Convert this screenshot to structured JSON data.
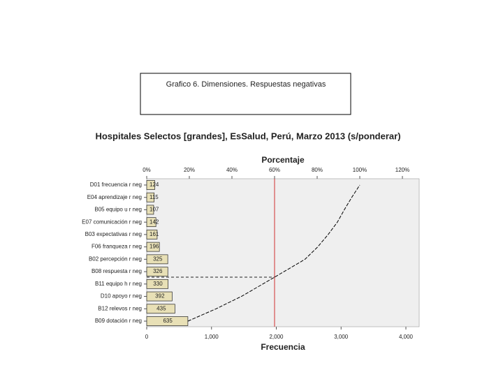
{
  "caption": "Grafico 6. Dimensiones. Respuestas negativas",
  "chart_data": {
    "type": "pareto",
    "title": "Hospitales Selectos [grandes], EsSalud, Perú, Marzo 2013 (s/ponderar)",
    "x2_label": "Porcentaje",
    "x_label": "Frecuencia",
    "categories": [
      "D01 frecuencia r neg",
      "E04 aprendizaje r neg",
      "B05 equipo u r neg",
      "E07 comunicación r neg",
      "B03 expectativas r neg",
      "F06 franqueza r neg",
      "B02 percepción r neg",
      "B08 respuesta r neg",
      "B11 equipo h r neg",
      "D10 apoyo r neg",
      "B12 relevos r neg",
      "B09 dotación r neg"
    ],
    "values": [
      124,
      115,
      107,
      142,
      161,
      196,
      325,
      326,
      330,
      392,
      435,
      635
    ],
    "color": "#e8e0b6",
    "line_color": "#000000",
    "xlim": [
      0,
      4000
    ],
    "xticks": [
      0,
      {
        "value": 1000,
        "label": "1,000"
      },
      {
        "value": 2000,
        "label": "2,000"
      },
      {
        "value": 3000,
        "label": "3,000"
      },
      {
        "value": 4000,
        "label": "4,000"
      }
    ],
    "x2lim": [
      0,
      120
    ],
    "x2ticks": [
      {
        "value": 0,
        "label": "0%"
      },
      {
        "value": 20,
        "label": "20%"
      },
      {
        "value": 40,
        "label": "40%"
      },
      {
        "value": 60,
        "label": "60%"
      },
      {
        "value": 80,
        "label": "80%"
      },
      {
        "value": 100,
        "label": "100%"
      },
      {
        "value": 120,
        "label": "120%"
      }
    ],
    "reference_line": 60,
    "reference_color": "#d03030"
  }
}
